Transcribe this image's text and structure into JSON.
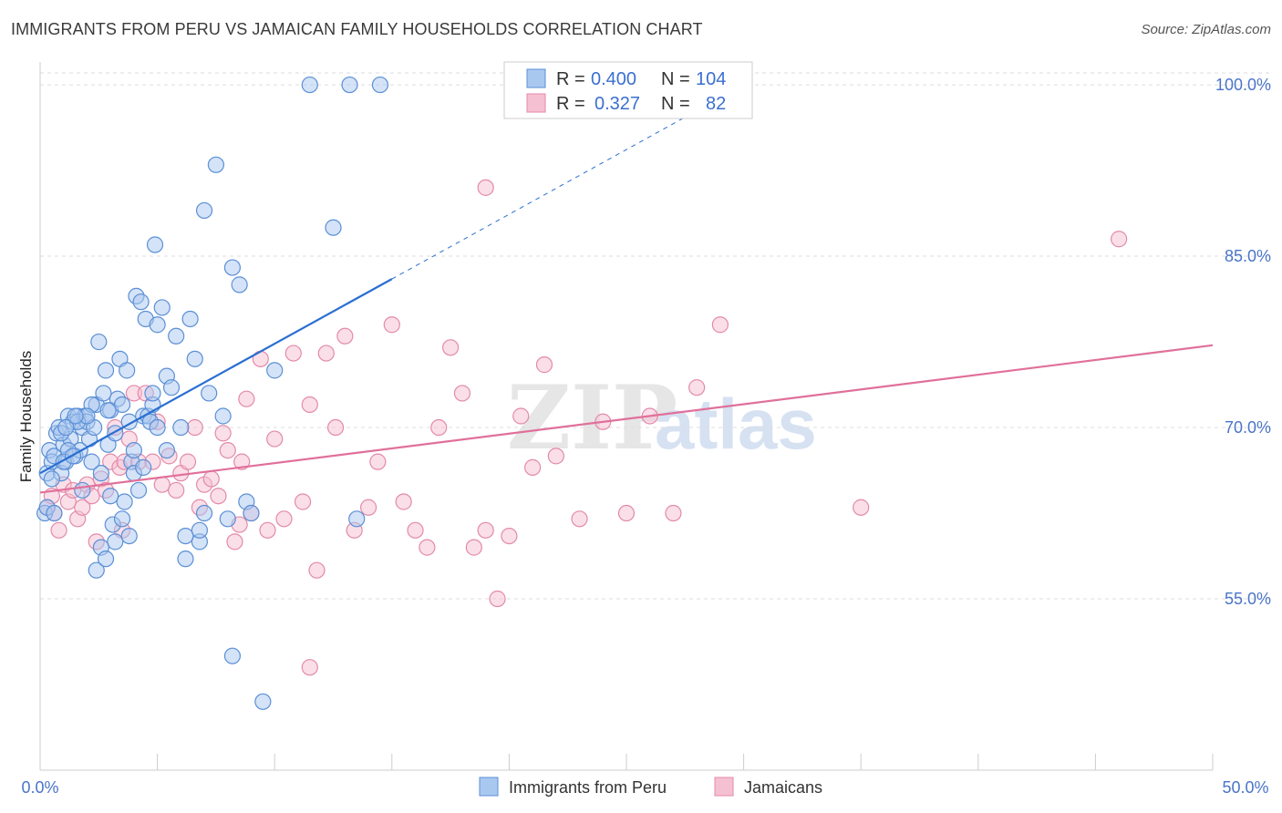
{
  "header": {
    "title": "IMMIGRANTS FROM PERU VS JAMAICAN FAMILY HOUSEHOLDS CORRELATION CHART",
    "source": "Source: ZipAtlas.com"
  },
  "watermark": {
    "zip": "ZIP",
    "atlas": "atlas"
  },
  "colors": {
    "peru_fill": "#a9c8f0",
    "peru_stroke": "#5b8fd6",
    "peru_line": "#2a6fd1",
    "jam_fill": "#f5c0d2",
    "jam_stroke": "#e38aaa",
    "jam_line": "#e0709a",
    "grid": "#dddddd"
  },
  "legend": {
    "rows": [
      {
        "r_label": "R =",
        "r_value": "0.400",
        "n_label": "N =",
        "n_value": "104"
      },
      {
        "r_label": "R =",
        "r_value": "0.327",
        "n_label": "N =",
        "n_value": "82"
      }
    ]
  },
  "chart_data": {
    "type": "scatter",
    "title": "IMMIGRANTS FROM PERU VS JAMAICAN FAMILY HOUSEHOLDS CORRELATION CHART",
    "xlabel": "",
    "ylabel": "Family Households",
    "xlim": [
      0,
      50
    ],
    "ylim": [
      40,
      102
    ],
    "x_tick_labels": [
      "0.0%",
      "50.0%"
    ],
    "y_ticks": [
      55,
      70,
      85,
      100
    ],
    "y_tick_labels": [
      "55.0%",
      "70.0%",
      "85.0%",
      "100.0%"
    ],
    "grid": true,
    "legend_position": "top-center",
    "series": [
      {
        "name": "Immigrants from Peru",
        "r": 0.4,
        "n": 104,
        "trend": {
          "x0": 0,
          "y0": 66.0,
          "x1": 15,
          "y1": 83.0,
          "dash_to_x": 28
        },
        "points": [
          [
            0.2,
            62.5
          ],
          [
            0.3,
            66
          ],
          [
            0.4,
            68
          ],
          [
            0.5,
            67
          ],
          [
            0.6,
            67.5
          ],
          [
            0.7,
            69.5
          ],
          [
            0.8,
            70
          ],
          [
            0.9,
            66
          ],
          [
            1.0,
            68.5
          ],
          [
            1.1,
            67
          ],
          [
            1.2,
            71
          ],
          [
            1.3,
            69
          ],
          [
            1.4,
            70.5
          ],
          [
            1.5,
            67.5
          ],
          [
            1.6,
            71
          ],
          [
            1.7,
            68
          ],
          [
            1.8,
            70
          ],
          [
            1.9,
            71
          ],
          [
            2.0,
            70.5
          ],
          [
            2.1,
            69
          ],
          [
            2.2,
            67
          ],
          [
            2.3,
            70
          ],
          [
            2.4,
            72
          ],
          [
            2.5,
            77.5
          ],
          [
            2.6,
            66
          ],
          [
            2.7,
            73
          ],
          [
            2.8,
            75
          ],
          [
            2.9,
            68.5
          ],
          [
            3.0,
            71.5
          ],
          [
            3.1,
            61.5
          ],
          [
            3.2,
            69.5
          ],
          [
            3.3,
            72.5
          ],
          [
            3.4,
            76
          ],
          [
            3.5,
            72
          ],
          [
            3.6,
            63.5
          ],
          [
            3.7,
            75
          ],
          [
            3.8,
            70.5
          ],
          [
            3.9,
            67
          ],
          [
            4.0,
            68
          ],
          [
            4.1,
            81.5
          ],
          [
            4.2,
            64.5
          ],
          [
            4.3,
            81
          ],
          [
            4.4,
            71
          ],
          [
            4.5,
            79.5
          ],
          [
            4.6,
            71
          ],
          [
            4.7,
            70.5
          ],
          [
            4.8,
            72
          ],
          [
            4.9,
            86
          ],
          [
            5.0,
            79
          ],
          [
            5.2,
            80.5
          ],
          [
            5.4,
            74.5
          ],
          [
            5.6,
            73.5
          ],
          [
            5.8,
            78
          ],
          [
            6.0,
            70
          ],
          [
            6.2,
            58.5
          ],
          [
            6.4,
            79.5
          ],
          [
            6.6,
            76
          ],
          [
            6.8,
            60
          ],
          [
            7.0,
            89
          ],
          [
            7.2,
            73
          ],
          [
            7.5,
            93
          ],
          [
            7.8,
            71
          ],
          [
            8.0,
            62
          ],
          [
            8.2,
            84
          ],
          [
            8.5,
            82.5
          ],
          [
            8.8,
            63.5
          ],
          [
            9.0,
            62.5
          ],
          [
            9.5,
            46
          ],
          [
            10.0,
            75
          ],
          [
            11.5,
            100
          ],
          [
            12.5,
            87.5
          ],
          [
            13.2,
            100
          ],
          [
            14.5,
            100
          ],
          [
            13.5,
            62
          ],
          [
            8.2,
            50
          ],
          [
            6.2,
            60.5
          ],
          [
            5.0,
            70
          ],
          [
            4.0,
            66
          ],
          [
            3.2,
            60
          ],
          [
            2.6,
            59.5
          ],
          [
            2.4,
            57.5
          ],
          [
            2.8,
            58.5
          ],
          [
            3.0,
            64
          ],
          [
            3.5,
            62
          ],
          [
            1.2,
            68
          ],
          [
            0.5,
            65.5
          ],
          [
            0.3,
            63
          ],
          [
            1.0,
            67
          ],
          [
            1.6,
            70.5
          ],
          [
            2.2,
            72
          ],
          [
            4.4,
            66.5
          ],
          [
            5.4,
            68
          ],
          [
            6.8,
            61
          ],
          [
            7.0,
            62.5
          ],
          [
            1.8,
            64.5
          ],
          [
            0.6,
            62.5
          ],
          [
            1.4,
            67.5
          ],
          [
            2.0,
            71
          ],
          [
            3.8,
            60.5
          ],
          [
            0.9,
            69.5
          ],
          [
            1.1,
            70
          ],
          [
            1.5,
            71
          ],
          [
            2.9,
            71.5
          ],
          [
            4.8,
            73
          ]
        ]
      },
      {
        "name": "Jamaicans",
        "r": 0.327,
        "n": 82,
        "trend": {
          "x0": 0,
          "y0": 64.3,
          "x1": 50,
          "y1": 77.2
        },
        "points": [
          [
            0.3,
            63
          ],
          [
            0.5,
            64
          ],
          [
            0.6,
            62.5
          ],
          [
            0.8,
            61
          ],
          [
            1.0,
            65
          ],
          [
            1.2,
            63.5
          ],
          [
            1.4,
            64.5
          ],
          [
            1.6,
            62
          ],
          [
            1.8,
            63
          ],
          [
            2.0,
            65
          ],
          [
            2.2,
            64
          ],
          [
            2.4,
            60
          ],
          [
            2.6,
            65.5
          ],
          [
            2.8,
            64.5
          ],
          [
            3.0,
            67
          ],
          [
            3.2,
            70
          ],
          [
            3.4,
            66.5
          ],
          [
            3.6,
            67
          ],
          [
            3.8,
            69
          ],
          [
            4.0,
            73
          ],
          [
            4.2,
            67
          ],
          [
            4.5,
            73
          ],
          [
            4.8,
            67
          ],
          [
            5.0,
            70.5
          ],
          [
            5.2,
            65
          ],
          [
            5.5,
            67.5
          ],
          [
            5.8,
            64.5
          ],
          [
            6.0,
            66
          ],
          [
            6.3,
            67
          ],
          [
            6.6,
            70
          ],
          [
            6.8,
            63
          ],
          [
            7.0,
            65
          ],
          [
            7.3,
            65.5
          ],
          [
            7.6,
            64
          ],
          [
            7.8,
            69.5
          ],
          [
            8.0,
            68
          ],
          [
            8.3,
            60
          ],
          [
            8.6,
            67
          ],
          [
            8.8,
            72.5
          ],
          [
            9.0,
            62.5
          ],
          [
            9.4,
            76
          ],
          [
            9.7,
            61
          ],
          [
            10.0,
            69
          ],
          [
            10.4,
            62
          ],
          [
            10.8,
            76.5
          ],
          [
            11.2,
            63.5
          ],
          [
            11.5,
            72
          ],
          [
            11.8,
            57.5
          ],
          [
            12.2,
            76.5
          ],
          [
            12.6,
            70
          ],
          [
            13.0,
            78
          ],
          [
            13.4,
            61
          ],
          [
            14.0,
            63
          ],
          [
            14.4,
            67
          ],
          [
            15.0,
            79
          ],
          [
            15.5,
            63.5
          ],
          [
            16.0,
            61
          ],
          [
            16.5,
            59.5
          ],
          [
            17.0,
            70
          ],
          [
            17.5,
            77
          ],
          [
            18.0,
            73
          ],
          [
            18.5,
            59.5
          ],
          [
            19.0,
            61
          ],
          [
            19.5,
            55
          ],
          [
            20.0,
            60.5
          ],
          [
            20.5,
            71
          ],
          [
            21.0,
            66.5
          ],
          [
            21.5,
            75.5
          ],
          [
            22.0,
            67.5
          ],
          [
            23.0,
            62
          ],
          [
            24.0,
            70.5
          ],
          [
            25.0,
            62.5
          ],
          [
            26.0,
            71
          ],
          [
            27.0,
            62.5
          ],
          [
            28.0,
            73.5
          ],
          [
            29.0,
            79
          ],
          [
            35.0,
            63
          ],
          [
            46.0,
            86.5
          ],
          [
            19.0,
            91
          ],
          [
            11.5,
            49
          ],
          [
            8.5,
            61.5
          ],
          [
            3.5,
            61
          ]
        ]
      }
    ]
  },
  "bottom_legend": [
    {
      "label": "Immigrants from Peru"
    },
    {
      "label": "Jamaicans"
    }
  ]
}
